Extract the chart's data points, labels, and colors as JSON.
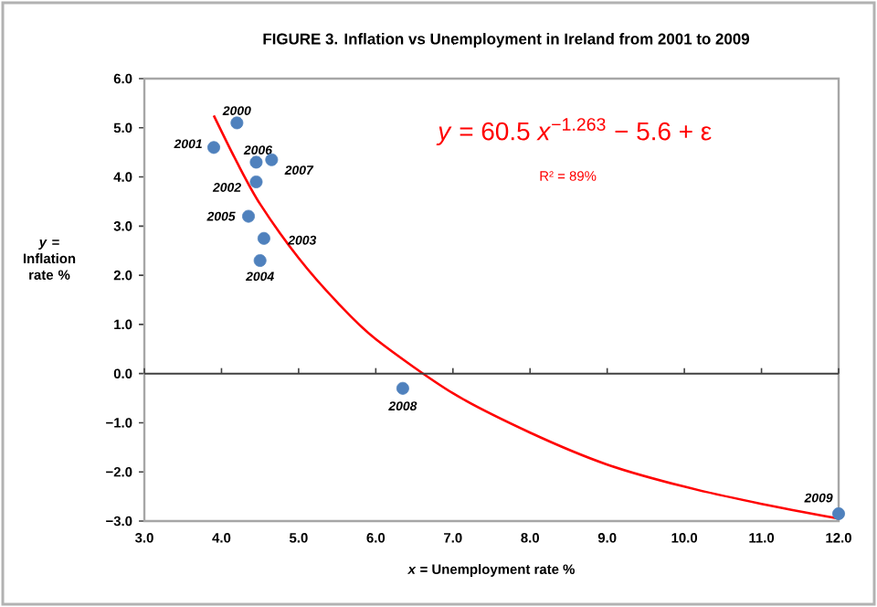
{
  "chart_data": {
    "type": "scatter",
    "title": "FIGURE 3.  Inflation vs Unemployment in Ireland from 2001 to 2009",
    "xlabel": "*x* = Unemployment rate %",
    "ylabel": "*y* = Inflation rate %",
    "xlim": [
      3.0,
      12.0
    ],
    "ylim": [
      -3.0,
      6.0
    ],
    "xticks": [
      {
        "value": 3,
        "label": "3.0"
      },
      {
        "value": 4,
        "label": "4.0"
      },
      {
        "value": 5,
        "label": "5.0"
      },
      {
        "value": 6,
        "label": "6.0"
      },
      {
        "value": 7,
        "label": "7.0"
      },
      {
        "value": 8,
        "label": "8.0"
      },
      {
        "value": 9,
        "label": "9.0"
      },
      {
        "value": 10,
        "label": "10.0"
      },
      {
        "value": 11,
        "label": "11.0"
      },
      {
        "value": 12,
        "label": "12.0"
      }
    ],
    "yticks": [
      {
        "value": -3,
        "label": "−3.0"
      },
      {
        "value": -2,
        "label": "−2.0"
      },
      {
        "value": -1,
        "label": "−1.0"
      },
      {
        "value": 0,
        "label": "0.0"
      },
      {
        "value": 1,
        "label": "1.0"
      },
      {
        "value": 2,
        "label": "2.0"
      },
      {
        "value": 3,
        "label": "3.0"
      },
      {
        "value": 4,
        "label": "4.0"
      },
      {
        "value": 5,
        "label": "5.0"
      },
      {
        "value": 6,
        "label": "6.0"
      }
    ],
    "grid": false,
    "marker": "circle",
    "ref_lines": [
      {
        "axis": "y",
        "value": 0,
        "color": "#404040"
      }
    ],
    "series": [
      {
        "color": "#4f81bd",
        "x": [
          4.2,
          3.9,
          4.45,
          4.55,
          4.5,
          4.35,
          4.45,
          4.65,
          6.35,
          12.0
        ],
        "values": [
          5.1,
          4.6,
          3.9,
          2.75,
          2.3,
          3.2,
          4.3,
          4.35,
          -0.3,
          -2.85
        ]
      },
      {
        "type": "line",
        "color": "#ff0000",
        "marker": "none",
        "x": [
          3.9,
          4.2,
          4.5,
          5.0,
          5.5,
          6.0,
          7.0,
          8.0,
          9.0,
          10.0,
          11.0,
          12.0
        ],
        "values": [
          5.25,
          4.3,
          3.45,
          2.35,
          1.45,
          0.7,
          -0.4,
          -1.2,
          -1.85,
          -2.3,
          -2.65,
          -2.95
        ]
      }
    ],
    "annotations": [
      {
        "text": "2000",
        "x": 4.2,
        "y": 5.1
      },
      {
        "text": "2001",
        "x": 3.9,
        "y": 4.6
      },
      {
        "text": "2002",
        "x": 4.45,
        "y": 3.9
      },
      {
        "text": "2003",
        "x": 4.55,
        "y": 2.75
      },
      {
        "text": "2004",
        "x": 4.5,
        "y": 2.3
      },
      {
        "text": "2005",
        "x": 4.35,
        "y": 3.2
      },
      {
        "text": "2006",
        "x": 4.45,
        "y": 4.3
      },
      {
        "text": "2007",
        "x": 4.65,
        "y": 4.35
      },
      {
        "text": "2008",
        "x": 6.35,
        "y": -0.3
      },
      {
        "text": "2009",
        "x": 12.0,
        "y": -2.85
      },
      "*y*  =  60.5 *x*$^{−1.263}$ − 5.6 + ε",
      "R² = 89%"
    ]
  }
}
